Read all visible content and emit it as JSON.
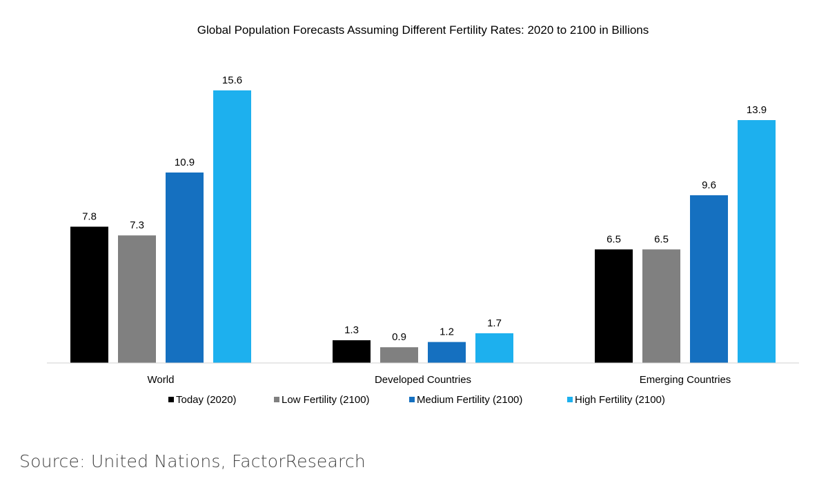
{
  "chart_data": {
    "type": "bar",
    "title": "Global Population Forecasts Assuming Different Fertility Rates: 2020 to 2100 in Billions",
    "categories": [
      "World",
      "Developed Countries",
      "Emerging Countries"
    ],
    "series": [
      {
        "name": "Today (2020)",
        "color": "#000000",
        "values": [
          7.8,
          1.3,
          6.5
        ],
        "labels": [
          "7.8",
          "1.3",
          "6.5"
        ]
      },
      {
        "name": "Low Fertility (2100)",
        "color": "#808080",
        "values": [
          7.3,
          0.9,
          6.5
        ],
        "labels": [
          "7.3",
          "0.9",
          "6.5"
        ]
      },
      {
        "name": "Medium Fertility (2100)",
        "color": "#1570C0",
        "values": [
          10.9,
          1.2,
          9.6
        ],
        "labels": [
          "10.9",
          "1.2",
          "9.6"
        ]
      },
      {
        "name": "High Fertility (2100)",
        "color": "#1DB0EE",
        "values": [
          15.6,
          1.7,
          13.9
        ],
        "labels": [
          "15.6",
          "1.7",
          "13.9"
        ]
      }
    ],
    "ylim": [
      0,
      15.6
    ],
    "grid": false,
    "legend_position": "bottom"
  },
  "source_note": "Source: United Nations, FactorResearch"
}
